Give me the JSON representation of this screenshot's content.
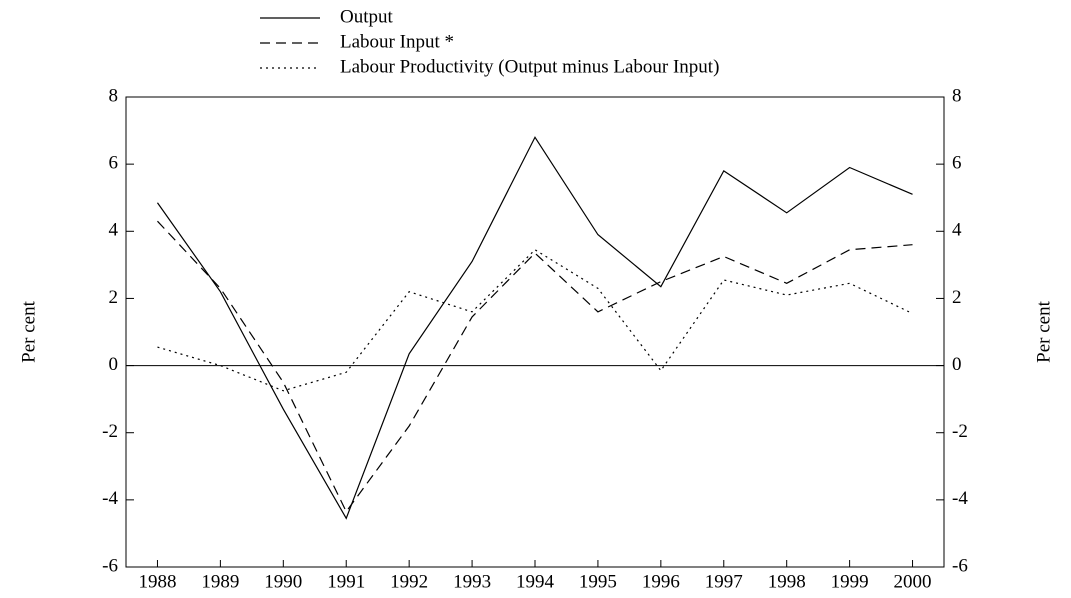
{
  "chart_data": {
    "type": "line",
    "categories": [
      "1988",
      "1989",
      "1990",
      "1991",
      "1992",
      "1993",
      "1994",
      "1995",
      "1996",
      "1997",
      "1998",
      "1999",
      "2000"
    ],
    "series": [
      {
        "name": "Output",
        "color": "#000000",
        "dash": "solid",
        "values": [
          4.85,
          2.2,
          -1.3,
          -4.55,
          0.35,
          3.1,
          6.8,
          3.9,
          2.35,
          5.8,
          4.55,
          5.9,
          5.1
        ]
      },
      {
        "name": "Labour Input *",
        "color": "#000000",
        "dash": "dashed",
        "values": [
          4.3,
          2.3,
          -0.5,
          -4.35,
          -1.8,
          1.45,
          3.35,
          1.6,
          2.5,
          3.25,
          2.45,
          3.45,
          3.6
        ]
      },
      {
        "name": "Labour Productivity (Output minus Labour Input)",
        "color": "#000000",
        "dash": "dotted",
        "values": [
          0.55,
          0.0,
          -0.75,
          -0.2,
          2.2,
          1.6,
          3.45,
          2.3,
          -0.15,
          2.55,
          2.1,
          2.45,
          1.55
        ]
      }
    ],
    "y_label": "Per cent",
    "y2_label": "Per cent",
    "ylim": [
      -6,
      8
    ],
    "yticks": [
      -6,
      -4,
      -2,
      0,
      2,
      4,
      6,
      8
    ],
    "y2lim": [
      -6,
      8
    ],
    "y2ticks": [
      -6,
      -4,
      -2,
      0,
      2,
      4,
      6,
      8
    ],
    "zero_line": true,
    "grid": false
  }
}
